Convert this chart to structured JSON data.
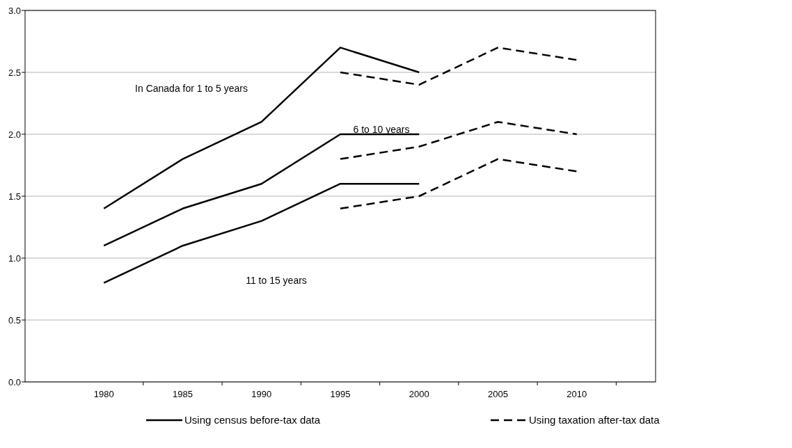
{
  "chart_data": {
    "type": "line",
    "x": [
      1980,
      1985,
      1990,
      1995,
      2000,
      2005,
      2010
    ],
    "xlim": [
      1975,
      2015
    ],
    "xticks": [
      {
        "value": 1980,
        "label": "1980"
      },
      {
        "value": 1985,
        "label": "1985"
      },
      {
        "value": 1990,
        "label": "1990"
      },
      {
        "value": 1995,
        "label": "1995"
      },
      {
        "value": 2000,
        "label": "2000"
      },
      {
        "value": 2005,
        "label": "2005"
      },
      {
        "value": 2010,
        "label": "2010"
      },
      {
        "value": 1982.5,
        "label": null
      },
      {
        "value": 1987.5,
        "label": null
      },
      {
        "value": 1992.5,
        "label": null
      },
      {
        "value": 1997.5,
        "label": null
      },
      {
        "value": 2002.5,
        "label": null
      },
      {
        "value": 2007.5,
        "label": null
      },
      {
        "value": 2012.5,
        "label": null
      }
    ],
    "ylim": [
      0,
      3
    ],
    "yticks": [
      {
        "value": 0,
        "label": "0.0"
      },
      0.5,
      {
        "value": 1,
        "label": "1.0"
      },
      1.5,
      {
        "value": 2,
        "label": "2.0"
      },
      2.5,
      {
        "value": 3,
        "label": "3.0"
      }
    ],
    "grid": "y",
    "legend": "bottom",
    "marker": "none",
    "series": [
      {
        "name": "Using census before-tax data",
        "color": "#000000",
        "line_style": "solid",
        "values": [
          1.4,
          1.8,
          2.1,
          2.7,
          2.5,
          null,
          null
        ]
      },
      {
        "color": "#000000",
        "line_style": "solid",
        "values": [
          1.1,
          1.4,
          1.6,
          2.0,
          2.0,
          null,
          null
        ]
      },
      {
        "color": "#000000",
        "line_style": "solid",
        "values": [
          0.8,
          1.1,
          1.3,
          1.6,
          1.6,
          null,
          null
        ]
      },
      {
        "name": "Using taxation after-tax data",
        "color": "#000000",
        "line_style": "dashed",
        "values": [
          null,
          null,
          null,
          2.5,
          2.4,
          2.7,
          2.6
        ]
      },
      {
        "color": "#000000",
        "line_style": "dashed",
        "values": [
          null,
          null,
          null,
          1.8,
          1.9,
          2.1,
          2.0
        ]
      },
      {
        "color": "#000000",
        "line_style": "dashed",
        "values": [
          null,
          null,
          null,
          1.4,
          1.5,
          1.8,
          1.7
        ]
      }
    ],
    "annotations": [
      "In Canada for 1 to 5 years",
      "6 to 10 years",
      "11 to 15 years"
    ]
  }
}
